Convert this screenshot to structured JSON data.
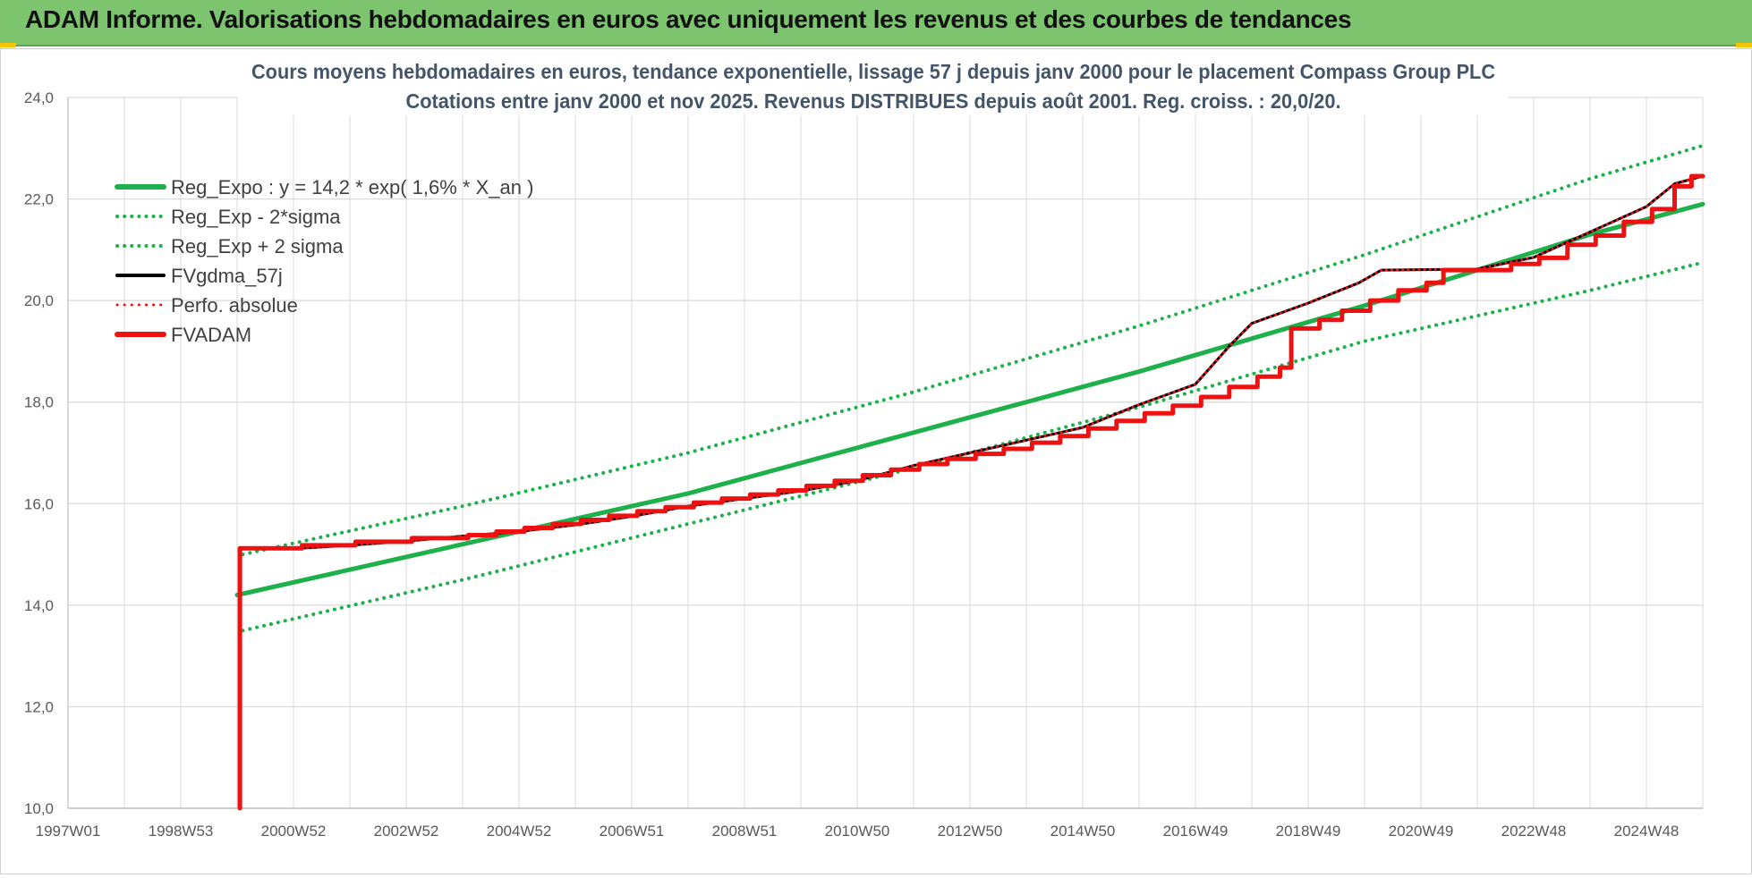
{
  "banner": {
    "title": "ADAM Informe. Valorisations hebdomadaires en euros avec uniquement les revenus et des courbes de tendances"
  },
  "colors": {
    "banner_bg": "#7dc46f",
    "trend_green": "#1eb04a",
    "adam_red": "#ee1111",
    "smooth_black": "#000000",
    "grid": "#d9d9d9",
    "title_text": "#44546a"
  },
  "chart_data": {
    "type": "line",
    "title_line1": "Cours moyens hebdomadaires en euros, tendance exponentielle, lissage 57 j depuis janv 2000  pour le placement Compass Group PLC",
    "title_line2": "Cotations entre janv 2000 et nov 2025. Revenus DISTRIBUES depuis août 2001. Reg. croiss. : 20,0/20.",
    "xlabel": "",
    "ylabel": "",
    "ylim": [
      10,
      24
    ],
    "xlim": [
      1997.0,
      2026.0
    ],
    "grid": true,
    "legend_position": "top-left",
    "yticks": [
      "10,0",
      "12,0",
      "14,0",
      "16,0",
      "18,0",
      "20,0",
      "22,0",
      "24,0"
    ],
    "xticks": [
      {
        "label": "1997W01",
        "x": 1997.0
      },
      {
        "label": "1998W53",
        "x": 1999.0
      },
      {
        "label": "2000W52",
        "x": 2001.0
      },
      {
        "label": "2002W52",
        "x": 2003.0
      },
      {
        "label": "2004W52",
        "x": 2005.0
      },
      {
        "label": "2006W51",
        "x": 2007.0
      },
      {
        "label": "2008W51",
        "x": 2009.0
      },
      {
        "label": "2010W50",
        "x": 2011.0
      },
      {
        "label": "2012W50",
        "x": 2013.0
      },
      {
        "label": "2014W50",
        "x": 2015.0
      },
      {
        "label": "2016W49",
        "x": 2017.0
      },
      {
        "label": "2018W49",
        "x": 2019.0
      },
      {
        "label": "2020W49",
        "x": 2021.0
      },
      {
        "label": "2022W48",
        "x": 2023.0
      },
      {
        "label": "2024W48",
        "x": 2025.0
      }
    ],
    "series": [
      {
        "name": "Reg_Expo : y = 14,2 * exp( 1,6% *  X_an )",
        "color": "#1eb04a",
        "style": "solid",
        "width": 5,
        "points": [
          [
            2000.0,
            14.2
          ],
          [
            2004.0,
            15.2
          ],
          [
            2008.0,
            16.2
          ],
          [
            2012.0,
            17.4
          ],
          [
            2016.0,
            18.6
          ],
          [
            2020.0,
            19.9
          ],
          [
            2024.0,
            21.3
          ],
          [
            2026.0,
            21.9
          ]
        ]
      },
      {
        "name": "Reg_Exp - 2*sigma",
        "color": "#1eb04a",
        "style": "dotted",
        "width": 4,
        "points": [
          [
            2000.1,
            13.5
          ],
          [
            2004.0,
            14.5
          ],
          [
            2008.0,
            15.6
          ],
          [
            2012.0,
            16.7
          ],
          [
            2016.0,
            17.9
          ],
          [
            2020.0,
            19.2
          ],
          [
            2024.0,
            20.2
          ],
          [
            2026.0,
            20.75
          ]
        ]
      },
      {
        "name": "Reg_Exp + 2 sigma",
        "color": "#1eb04a",
        "style": "dotted",
        "width": 4,
        "points": [
          [
            2000.1,
            15.0
          ],
          [
            2004.0,
            15.95
          ],
          [
            2008.0,
            17.0
          ],
          [
            2012.0,
            18.2
          ],
          [
            2016.0,
            19.5
          ],
          [
            2020.0,
            20.9
          ],
          [
            2024.0,
            22.4
          ],
          [
            2026.0,
            23.05
          ]
        ]
      },
      {
        "name": "FVgdma_57j",
        "color": "#000000",
        "style": "solid",
        "width": 3,
        "points": [
          [
            2000.05,
            10.0
          ],
          [
            2000.05,
            15.12
          ],
          [
            2001.1,
            15.12
          ],
          [
            2002.0,
            15.18
          ],
          [
            2003.0,
            15.26
          ],
          [
            2004.0,
            15.36
          ],
          [
            2005.0,
            15.45
          ],
          [
            2006.0,
            15.58
          ],
          [
            2007.0,
            15.75
          ],
          [
            2008.0,
            15.95
          ],
          [
            2009.0,
            16.1
          ],
          [
            2010.0,
            16.25
          ],
          [
            2011.0,
            16.45
          ],
          [
            2012.0,
            16.75
          ],
          [
            2013.0,
            17.0
          ],
          [
            2014.0,
            17.25
          ],
          [
            2015.0,
            17.5
          ],
          [
            2016.0,
            17.95
          ],
          [
            2017.0,
            18.35
          ],
          [
            2017.6,
            19.1
          ],
          [
            2018.0,
            19.55
          ],
          [
            2019.0,
            19.95
          ],
          [
            2019.9,
            20.35
          ],
          [
            2020.3,
            20.6
          ],
          [
            2022.0,
            20.62
          ],
          [
            2023.0,
            20.85
          ],
          [
            2024.0,
            21.35
          ],
          [
            2025.0,
            21.85
          ],
          [
            2025.5,
            22.3
          ],
          [
            2026.0,
            22.45
          ]
        ]
      },
      {
        "name": "Perfo. absolue",
        "color": "#ee1111",
        "style": "dotted",
        "width": 3,
        "points": [
          [
            2000.05,
            10.0
          ],
          [
            2000.05,
            15.12
          ],
          [
            2001.1,
            15.12
          ],
          [
            2002.0,
            15.18
          ],
          [
            2003.0,
            15.26
          ],
          [
            2004.0,
            15.36
          ],
          [
            2005.0,
            15.45
          ],
          [
            2006.0,
            15.58
          ],
          [
            2007.0,
            15.75
          ],
          [
            2008.0,
            15.95
          ],
          [
            2009.0,
            16.1
          ],
          [
            2010.0,
            16.25
          ],
          [
            2011.0,
            16.45
          ],
          [
            2012.0,
            16.75
          ],
          [
            2013.0,
            17.0
          ],
          [
            2014.0,
            17.25
          ],
          [
            2015.0,
            17.5
          ],
          [
            2016.0,
            17.95
          ],
          [
            2017.0,
            18.35
          ],
          [
            2017.6,
            19.1
          ],
          [
            2018.0,
            19.55
          ],
          [
            2019.0,
            19.95
          ],
          [
            2019.9,
            20.35
          ],
          [
            2020.3,
            20.6
          ],
          [
            2022.0,
            20.62
          ],
          [
            2023.0,
            20.85
          ],
          [
            2024.0,
            21.35
          ],
          [
            2025.0,
            21.85
          ],
          [
            2025.5,
            22.3
          ],
          [
            2026.0,
            22.45
          ]
        ]
      },
      {
        "name": "FVADAM",
        "color": "#ee1111",
        "style": "step",
        "width": 5,
        "points": [
          [
            2000.05,
            10.0
          ],
          [
            2000.05,
            15.12
          ],
          [
            2001.15,
            15.12
          ],
          [
            2001.15,
            15.18
          ],
          [
            2002.1,
            15.18
          ],
          [
            2002.1,
            15.25
          ],
          [
            2003.1,
            15.25
          ],
          [
            2003.1,
            15.32
          ],
          [
            2004.1,
            15.32
          ],
          [
            2004.1,
            15.38
          ],
          [
            2004.6,
            15.38
          ],
          [
            2004.6,
            15.45
          ],
          [
            2005.1,
            15.45
          ],
          [
            2005.1,
            15.52
          ],
          [
            2005.6,
            15.52
          ],
          [
            2005.6,
            15.6
          ],
          [
            2006.1,
            15.6
          ],
          [
            2006.1,
            15.68
          ],
          [
            2006.6,
            15.68
          ],
          [
            2006.6,
            15.76
          ],
          [
            2007.1,
            15.76
          ],
          [
            2007.1,
            15.85
          ],
          [
            2007.6,
            15.85
          ],
          [
            2007.6,
            15.93
          ],
          [
            2008.1,
            15.93
          ],
          [
            2008.1,
            16.02
          ],
          [
            2008.6,
            16.02
          ],
          [
            2008.6,
            16.1
          ],
          [
            2009.1,
            16.1
          ],
          [
            2009.1,
            16.18
          ],
          [
            2009.6,
            16.18
          ],
          [
            2009.6,
            16.26
          ],
          [
            2010.1,
            16.26
          ],
          [
            2010.1,
            16.35
          ],
          [
            2010.6,
            16.35
          ],
          [
            2010.6,
            16.45
          ],
          [
            2011.1,
            16.45
          ],
          [
            2011.1,
            16.56
          ],
          [
            2011.6,
            16.56
          ],
          [
            2011.6,
            16.67
          ],
          [
            2012.1,
            16.67
          ],
          [
            2012.1,
            16.78
          ],
          [
            2012.6,
            16.78
          ],
          [
            2012.6,
            16.88
          ],
          [
            2013.1,
            16.88
          ],
          [
            2013.1,
            16.98
          ],
          [
            2013.6,
            16.98
          ],
          [
            2013.6,
            17.08
          ],
          [
            2014.1,
            17.08
          ],
          [
            2014.1,
            17.2
          ],
          [
            2014.6,
            17.2
          ],
          [
            2014.6,
            17.33
          ],
          [
            2015.1,
            17.33
          ],
          [
            2015.1,
            17.48
          ],
          [
            2015.6,
            17.48
          ],
          [
            2015.6,
            17.63
          ],
          [
            2016.1,
            17.63
          ],
          [
            2016.1,
            17.78
          ],
          [
            2016.6,
            17.78
          ],
          [
            2016.6,
            17.93
          ],
          [
            2017.1,
            17.93
          ],
          [
            2017.1,
            18.1
          ],
          [
            2017.6,
            18.1
          ],
          [
            2017.6,
            18.3
          ],
          [
            2018.1,
            18.3
          ],
          [
            2018.1,
            18.5
          ],
          [
            2018.5,
            18.5
          ],
          [
            2018.5,
            18.68
          ],
          [
            2018.7,
            18.68
          ],
          [
            2018.7,
            19.45
          ],
          [
            2019.2,
            19.45
          ],
          [
            2019.2,
            19.62
          ],
          [
            2019.6,
            19.62
          ],
          [
            2019.6,
            19.8
          ],
          [
            2020.1,
            19.8
          ],
          [
            2020.1,
            20.0
          ],
          [
            2020.6,
            20.0
          ],
          [
            2020.6,
            20.2
          ],
          [
            2021.1,
            20.2
          ],
          [
            2021.1,
            20.35
          ],
          [
            2021.4,
            20.35
          ],
          [
            2021.4,
            20.6
          ],
          [
            2022.6,
            20.6
          ],
          [
            2022.6,
            20.72
          ],
          [
            2023.1,
            20.72
          ],
          [
            2023.1,
            20.84
          ],
          [
            2023.6,
            20.84
          ],
          [
            2023.6,
            21.1
          ],
          [
            2024.1,
            21.1
          ],
          [
            2024.1,
            21.28
          ],
          [
            2024.6,
            21.28
          ],
          [
            2024.6,
            21.55
          ],
          [
            2025.1,
            21.55
          ],
          [
            2025.1,
            21.8
          ],
          [
            2025.5,
            21.8
          ],
          [
            2025.5,
            22.25
          ],
          [
            2025.8,
            22.25
          ],
          [
            2025.8,
            22.45
          ],
          [
            2026.0,
            22.45
          ]
        ]
      }
    ]
  }
}
